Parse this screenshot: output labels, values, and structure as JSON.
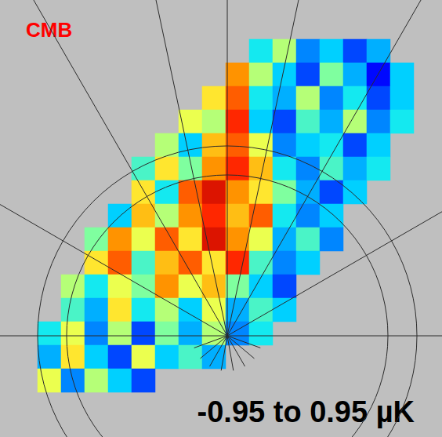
{
  "chart_data": {
    "type": "heatmap",
    "title": "CMB",
    "annotation": "-0.95 to 0.95 µK",
    "tick_labels": false,
    "color_range": [
      -0.95,
      0.95
    ],
    "cells": [
      [
        null,
        null,
        null,
        null,
        null,
        null,
        null,
        null,
        null,
        -0.2,
        0.1,
        -0.5,
        -0.3,
        -0.6,
        -0.4,
        null
      ],
      [
        null,
        null,
        null,
        null,
        null,
        null,
        null,
        null,
        0.5,
        0.1,
        -0.3,
        -0.6,
        0.0,
        -0.4,
        -0.7,
        -0.3
      ],
      [
        null,
        null,
        null,
        null,
        null,
        null,
        null,
        0.3,
        0.6,
        -0.2,
        -0.4,
        0.1,
        -0.5,
        -0.2,
        -0.6,
        -0.3
      ],
      [
        null,
        null,
        null,
        null,
        null,
        null,
        0.2,
        0.1,
        0.7,
        -0.3,
        -0.6,
        -0.1,
        -0.4,
        0.1,
        -0.5,
        -0.2
      ],
      [
        null,
        null,
        null,
        null,
        null,
        0.1,
        -0.3,
        0.4,
        0.6,
        0.2,
        -0.5,
        -0.3,
        -0.2,
        -0.6,
        -0.3,
        null
      ],
      [
        null,
        null,
        null,
        null,
        -0.1,
        0.3,
        0.0,
        0.5,
        0.7,
        0.4,
        -0.2,
        -0.5,
        -0.1,
        -0.4,
        -0.2,
        null
      ],
      [
        null,
        null,
        null,
        null,
        0.3,
        -0.2,
        0.6,
        0.8,
        0.5,
        0.3,
        0.0,
        -0.4,
        -0.6,
        -0.3,
        null,
        null
      ],
      [
        null,
        null,
        null,
        -0.3,
        0.4,
        0.1,
        0.5,
        0.7,
        0.4,
        0.6,
        -0.2,
        -0.5,
        -0.3,
        null,
        null,
        null
      ],
      [
        null,
        null,
        0.0,
        0.5,
        0.2,
        0.6,
        0.3,
        0.8,
        0.5,
        0.2,
        -0.4,
        -0.1,
        -0.5,
        null,
        null,
        null
      ],
      [
        null,
        null,
        0.3,
        0.6,
        -0.1,
        0.4,
        0.6,
        0.3,
        0.7,
        -0.1,
        -0.5,
        -0.3,
        null,
        null,
        null,
        null
      ],
      [
        null,
        0.1,
        -0.2,
        0.2,
        0.0,
        0.5,
        0.2,
        0.4,
        0.0,
        -0.3,
        -0.6,
        null,
        null,
        null,
        null,
        null
      ],
      [
        null,
        -0.1,
        -0.4,
        0.3,
        -0.2,
        0.1,
        -0.3,
        0.2,
        -0.4,
        -0.1,
        -0.3,
        null,
        null,
        null,
        null,
        null
      ],
      [
        -0.2,
        0.2,
        -0.5,
        0.1,
        -0.6,
        0.0,
        -0.4,
        0.1,
        -0.5,
        -0.2,
        null,
        null,
        null,
        null,
        null,
        null
      ],
      [
        -0.4,
        0.3,
        -0.3,
        -0.6,
        0.2,
        -0.3,
        -0.1,
        -0.4,
        null,
        null,
        null,
        null,
        null,
        null,
        null,
        null
      ],
      [
        0.2,
        -0.5,
        0.1,
        -0.3,
        -0.6,
        null,
        null,
        null,
        null,
        null,
        null,
        null,
        null,
        null,
        null,
        null
      ]
    ]
  }
}
